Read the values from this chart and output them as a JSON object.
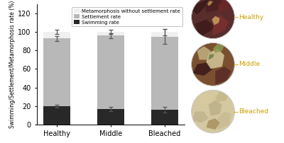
{
  "categories": [
    "Healthy",
    "Middle",
    "Bleached"
  ],
  "swimming": [
    19.5,
    16.5,
    16.0
  ],
  "settlement": [
    73.5,
    79.5,
    79.0
  ],
  "metamorphosis": [
    7.0,
    4.0,
    5.0
  ],
  "swimming_err": [
    1.5,
    2.5,
    3.0
  ],
  "settlement_err": [
    2.5,
    3.0,
    8.0
  ],
  "meta_err": [
    2.5,
    2.5,
    3.5
  ],
  "color_swimming": "#282828",
  "color_settlement": "#b8b8b8",
  "color_metamorphosis": "#f0f0f0",
  "ylabel": "Swimming/Settlement/Metamorphosis rate (%)",
  "ylim": [
    0,
    130
  ],
  "yticks": [
    0,
    20,
    40,
    60,
    80,
    100,
    120
  ],
  "legend_labels": [
    "Metamorphosis without settlement rate",
    "Settlement rate",
    "Swimming rate"
  ],
  "bar_width": 0.5,
  "label_color": "#c8a000",
  "panel_labels": [
    "Healthy",
    "Middle",
    "Bleached"
  ],
  "bg_color": "#f5f5f0"
}
